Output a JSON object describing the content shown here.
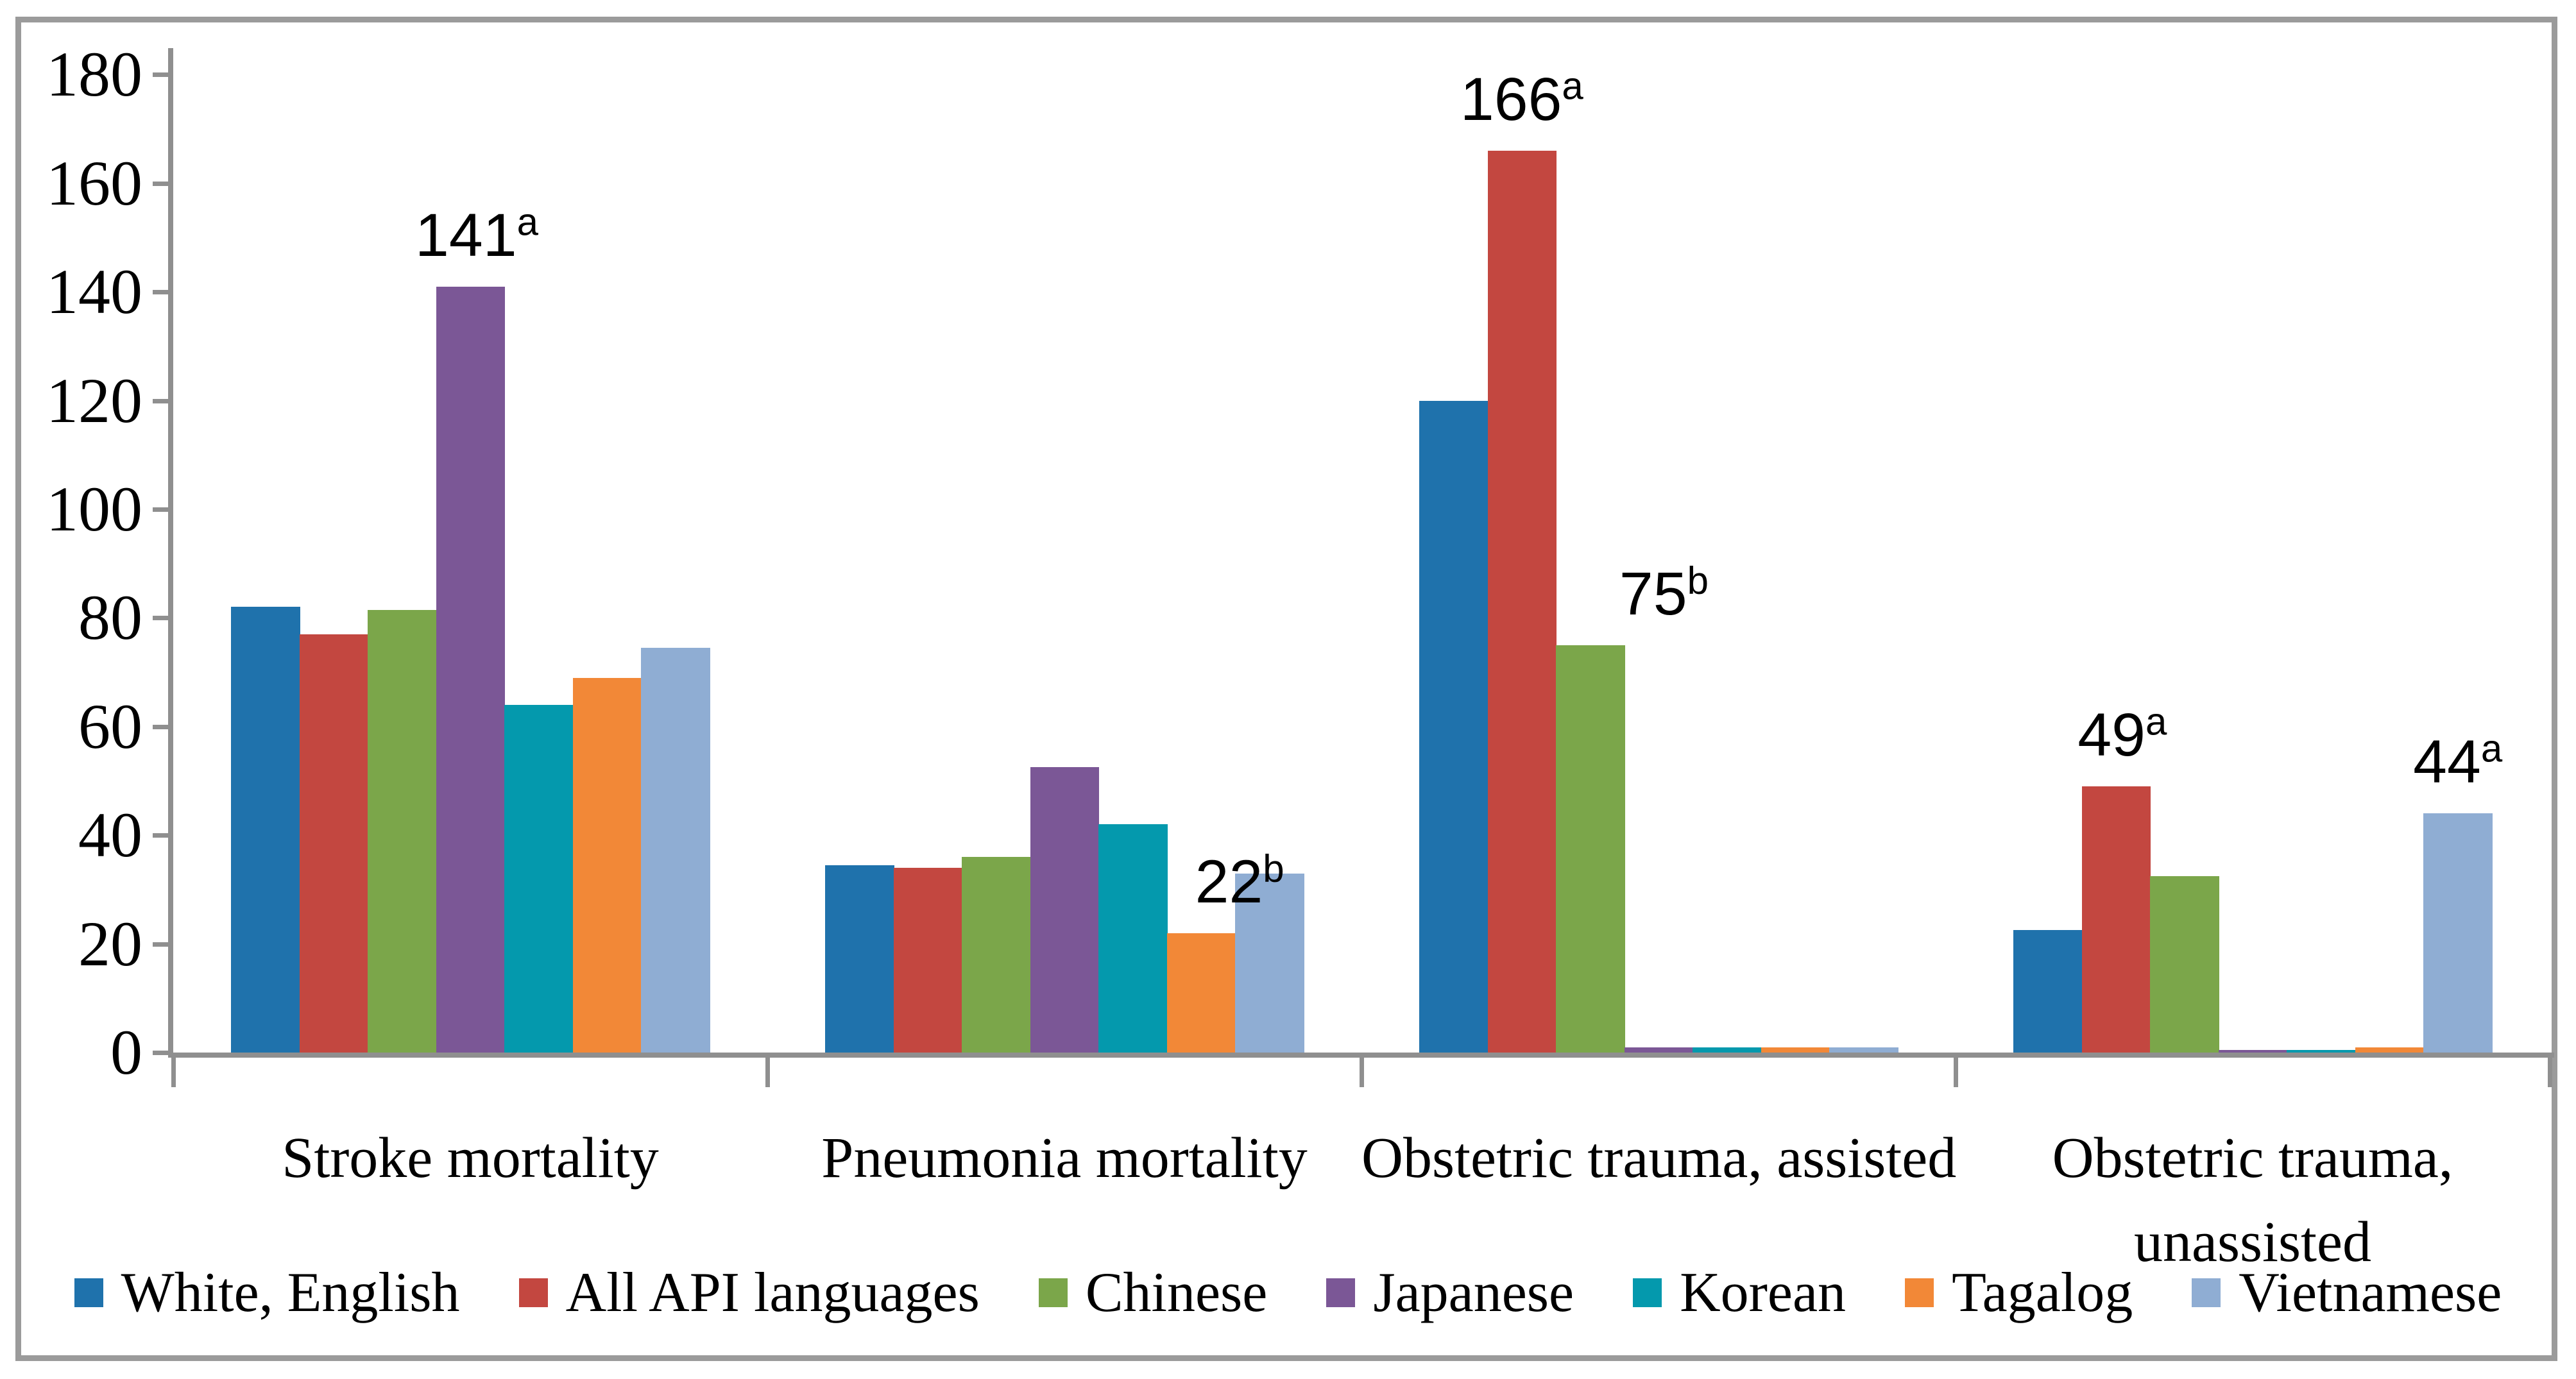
{
  "chart_data": {
    "type": "bar",
    "title": "",
    "xlabel": "",
    "ylabel": "",
    "ylim": [
      0,
      180
    ],
    "yticks": [
      0,
      20,
      40,
      60,
      80,
      100,
      120,
      140,
      160,
      180
    ],
    "grid": false,
    "legend_position": "bottom",
    "categories": [
      "Stroke mortality",
      "Pneumonia mortality",
      "Obstetric trauma, assisted",
      "Obstetric trauma, unassisted"
    ],
    "category_label_lines": [
      [
        "Stroke mortality"
      ],
      [
        "Pneumonia mortality"
      ],
      [
        "Obstetric trauma, assisted"
      ],
      [
        "Obstetric trauma,",
        "unassisted"
      ]
    ],
    "series": [
      {
        "name": "White, English",
        "color": "#1F72AC",
        "values": [
          82,
          34.5,
          120,
          22.5
        ]
      },
      {
        "name": "All API languages",
        "color": "#C34740",
        "values": [
          77,
          34,
          166,
          49
        ]
      },
      {
        "name": "Chinese",
        "color": "#7BA64A",
        "values": [
          81.5,
          36,
          75,
          32.5
        ]
      },
      {
        "name": "Japanese",
        "color": "#7B5796",
        "values": [
          141,
          52.5,
          1,
          0.5
        ]
      },
      {
        "name": "Korean",
        "color": "#0499AD",
        "values": [
          64,
          42,
          1,
          0.5
        ]
      },
      {
        "name": "Tagalog",
        "color": "#F28837",
        "values": [
          69,
          22,
          1,
          1
        ]
      },
      {
        "name": "Vietnamese",
        "color": "#8FADD3",
        "values": [
          74.5,
          33,
          1,
          44
        ]
      }
    ],
    "annotations": [
      {
        "category_index": 0,
        "series_index": 3,
        "text": "141",
        "sup": "a",
        "dx": 10
      },
      {
        "category_index": 1,
        "series_index": 5,
        "text": "22",
        "sup": "b",
        "dx": 60
      },
      {
        "category_index": 2,
        "series_index": 1,
        "text": "166",
        "sup": "a",
        "dx": 0
      },
      {
        "category_index": 2,
        "series_index": 2,
        "text": "75",
        "sup": "b",
        "dx": 115
      },
      {
        "category_index": 3,
        "series_index": 1,
        "text": "49",
        "sup": "a",
        "dx": 10
      },
      {
        "category_index": 3,
        "series_index": 6,
        "text": "44",
        "sup": "a",
        "dx": 0
      }
    ],
    "colors": {
      "axis": "#8F8F8F",
      "frame_border": "#9B9B9B",
      "background": "#FFFFFF",
      "text": "#000000"
    }
  }
}
